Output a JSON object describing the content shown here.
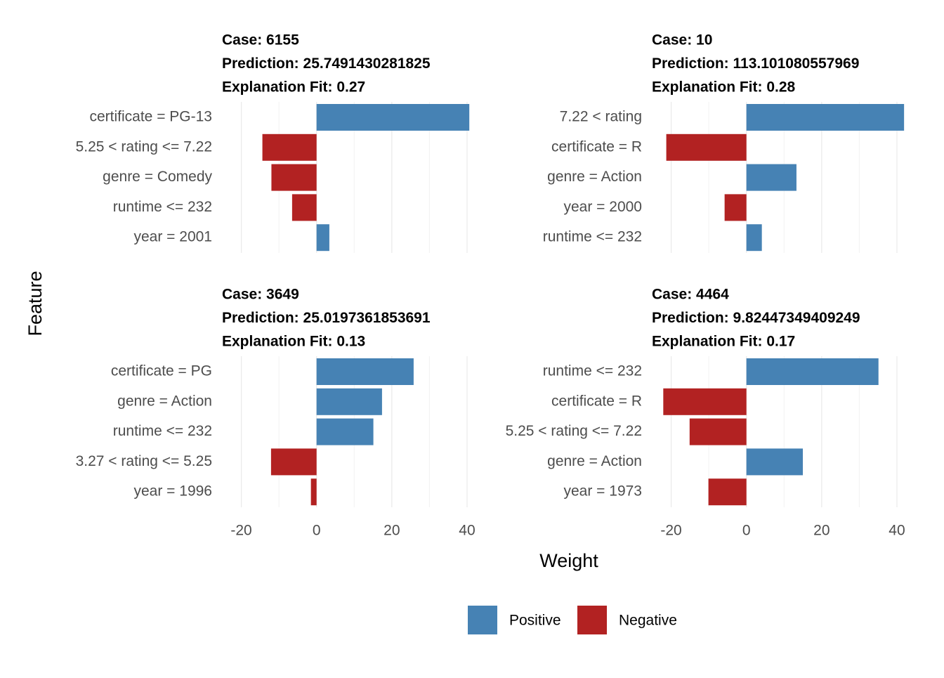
{
  "chart_data": {
    "type": "bar",
    "xlabel": "Weight",
    "ylabel": "Feature",
    "xlim": [
      -24.4,
      44.3
    ],
    "xticks": [
      -20,
      0,
      20,
      40
    ],
    "minor_xticks": [
      -10,
      10,
      30
    ],
    "grid": true,
    "legend": [
      {
        "name": "Positive",
        "color": "#4682b4"
      },
      {
        "name": "Negative",
        "color": "#b22222"
      }
    ],
    "facets": [
      {
        "title": [
          "Case: 6155",
          "Prediction: 25.7491430281825",
          "Explanation Fit: 0.27"
        ],
        "categories": [
          "certificate = PG-13",
          "5.25 < rating <= 7.22",
          "genre = Comedy",
          "runtime <= 232",
          "year = 2001"
        ],
        "values": [
          40.6,
          -14.4,
          -12.0,
          -6.5,
          3.4
        ]
      },
      {
        "title": [
          "Case: 10",
          "Prediction: 113.101080557969",
          "Explanation Fit: 0.28"
        ],
        "categories": [
          "7.22 < rating",
          "certificate = R",
          "genre = Action",
          "year = 2000",
          "runtime <= 232"
        ],
        "values": [
          41.9,
          -21.3,
          13.3,
          -5.8,
          4.1
        ]
      },
      {
        "title": [
          "Case: 3649",
          "Prediction: 25.0197361853691",
          "Explanation Fit: 0.13"
        ],
        "categories": [
          "certificate = PG",
          "genre = Action",
          "runtime <= 232",
          "3.27 < rating <= 5.25",
          "year = 1996"
        ],
        "values": [
          25.8,
          17.4,
          15.1,
          -12.1,
          -1.5
        ]
      },
      {
        "title": [
          "Case: 4464",
          "Prediction: 9.82447349409249",
          "Explanation Fit: 0.17"
        ],
        "categories": [
          "runtime <= 232",
          "certificate = R",
          "5.25 < rating <= 7.22",
          "genre = Action",
          "year = 1973"
        ],
        "values": [
          35.1,
          -22.1,
          -15.1,
          15.0,
          -10.1
        ]
      }
    ]
  }
}
